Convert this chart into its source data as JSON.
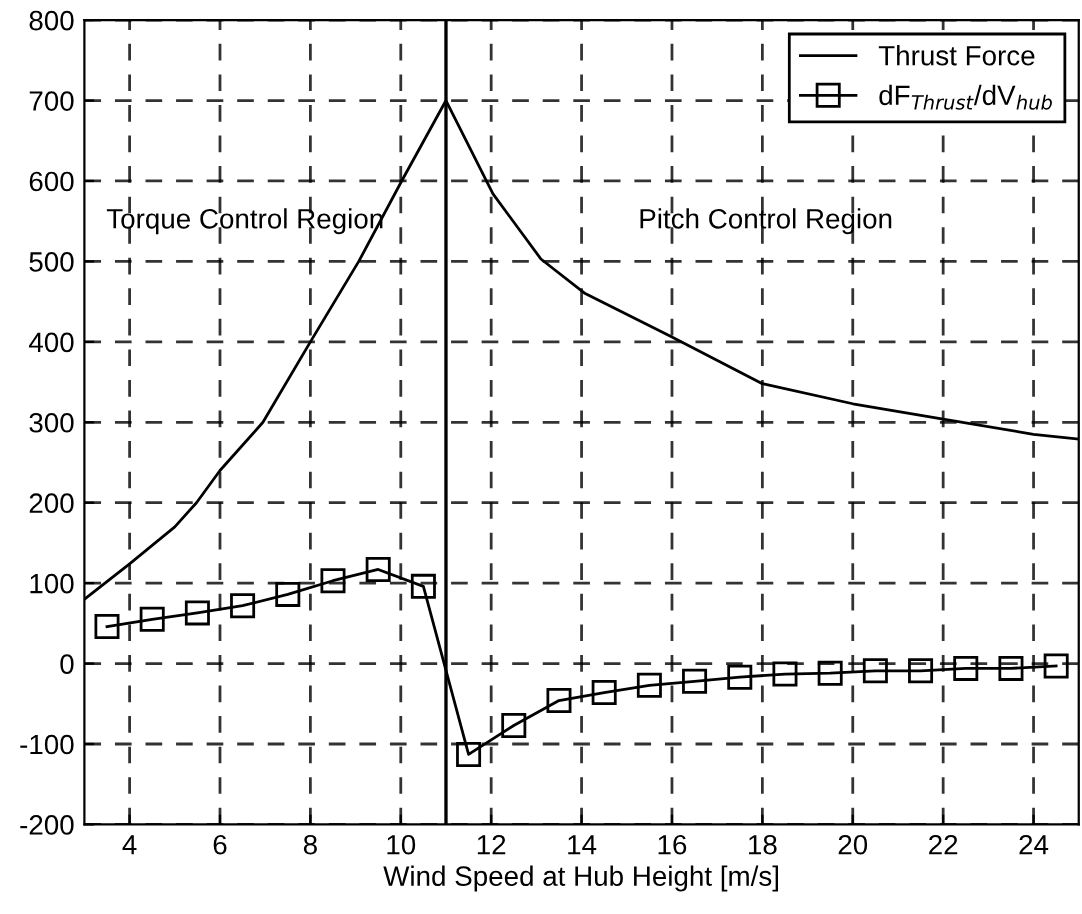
{
  "chart_data": {
    "type": "line",
    "xlabel": "Wind Speed at Hub Height [m/s]",
    "annotations": [
      "Torque Control Region",
      "Pitch Control Region"
    ],
    "xlim": [
      3,
      25
    ],
    "xticks": [
      4,
      6,
      8,
      10,
      12,
      14,
      16,
      18,
      20,
      22,
      24
    ],
    "ylim": [
      -200,
      800
    ],
    "yticks": [
      -200,
      -100,
      0,
      100,
      200,
      300,
      400,
      500,
      600,
      700,
      800
    ],
    "grid": true,
    "legend": "top right",
    "ref_lines": [
      {
        "axis": "x",
        "value": 11,
        "color": "#000000",
        "line_style": "solid"
      }
    ],
    "series": [
      {
        "name": "Thrust Force",
        "color": "#000000",
        "marker": "none",
        "line_style": "solid",
        "x": [
          3,
          4,
          5,
          5.48,
          6,
          6.95,
          8,
          9.07,
          10.02,
          11,
          12.04,
          13.1,
          14.08,
          16,
          18,
          20,
          22,
          24,
          25
        ],
        "values": [
          80,
          124,
          170,
          200,
          240,
          300,
          400,
          500,
          600,
          700,
          584,
          503,
          460,
          406,
          348,
          323,
          304,
          285,
          279
        ]
      },
      {
        "name": "dF$_{Thrust}$/dV$_{hub}$",
        "color": "#000000",
        "marker": "square",
        "line_style": "solid",
        "x": [
          3.5,
          4.5,
          5.5,
          6.5,
          7.5,
          8.5,
          9.5,
          10.5,
          11.5,
          12.5,
          13.5,
          14.5,
          15.5,
          16.5,
          17.5,
          18.5,
          19.5,
          20.5,
          21.5,
          22.5,
          23.5,
          24.5
        ],
        "values": [
          46,
          55,
          63,
          72,
          86,
          103,
          117,
          96,
          -113,
          -77,
          -46,
          -36,
          -27,
          -22,
          -17,
          -13,
          -12,
          -9,
          -9,
          -6,
          -6,
          -3
        ]
      }
    ]
  }
}
